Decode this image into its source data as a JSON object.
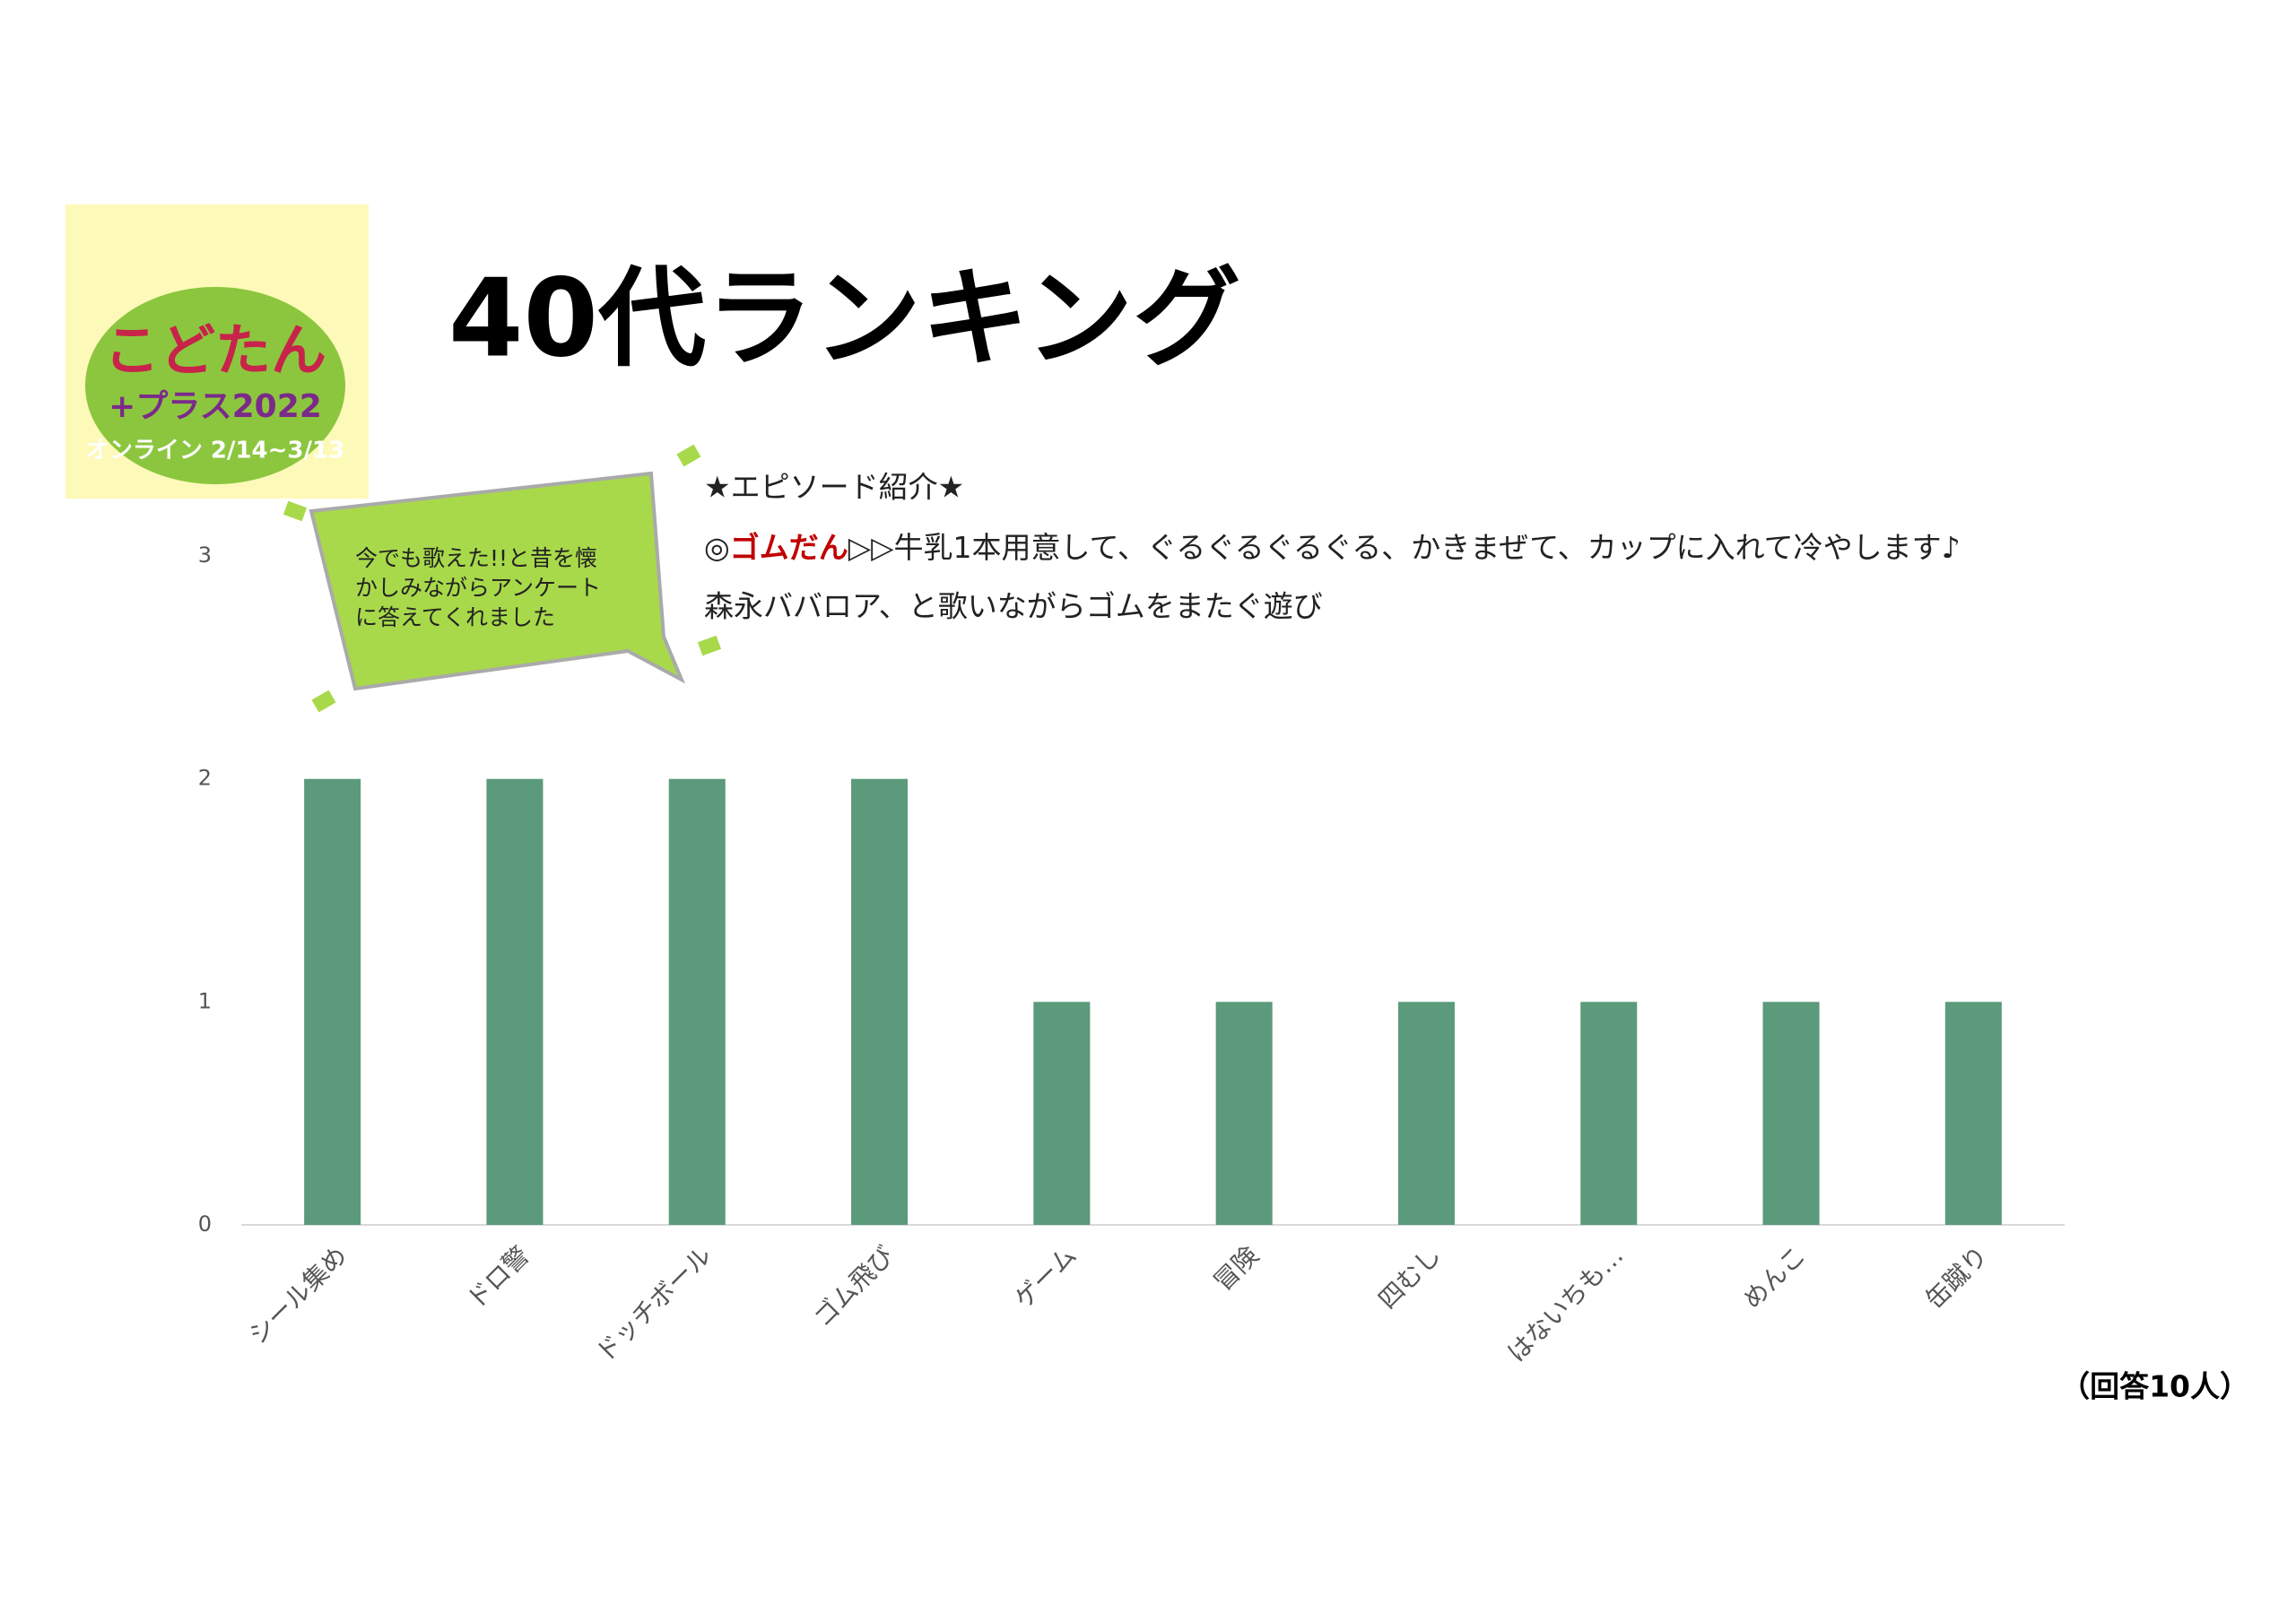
{
  "logo": {
    "name": "こどたん",
    "plus": "+プラス2022",
    "dates": "オンライン 2/14~3/13"
  },
  "chart_data": {
    "type": "bar",
    "title": "40代ランキング",
    "categories": [
      "シール集め",
      "ドロ警",
      "ドッチボール",
      "ゴム飛び",
      "ゲーム",
      "冒険",
      "四むし",
      "はないちも…",
      "めんこ",
      "缶蹴り"
    ],
    "values": [
      2,
      2,
      2,
      2,
      1,
      1,
      1,
      1,
      1,
      1
    ],
    "color": "#5b9a7a",
    "ylim": [
      0,
      3
    ],
    "yticks": [
      0,
      1,
      2,
      3
    ],
    "grid": false,
    "annotations": {
      "callout": [
        "今でも歌えた!!と昔を懐",
        "かしみながらアンケート",
        "に答えてくれました"
      ],
      "episode": {
        "heading": "★エピソード紹介★",
        "prefix": "◎",
        "highlight": "ゴムだん",
        "line": "▷▷牛乳1本用意して、ぐるぐるぐるぐる、かきまぜて、カップに入れて冷やします♪",
        "line2": "森永ババロア、と歌いながらゴムをまたぐ遊び"
      },
      "respondents": "（回答10人）"
    }
  }
}
